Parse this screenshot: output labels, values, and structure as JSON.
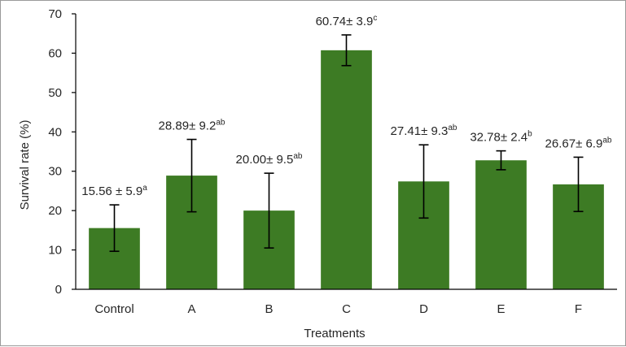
{
  "chart_data": {
    "type": "bar",
    "xlabel": "Treatments",
    "ylabel": "Survival rate (%)",
    "ylim": [
      0,
      70
    ],
    "yticks": [
      0,
      10,
      20,
      30,
      40,
      50,
      60,
      70
    ],
    "grid": false,
    "legend": "none",
    "categories": [
      "Control",
      "A",
      "B",
      "C",
      "D",
      "E",
      "F"
    ],
    "values": [
      15.56,
      28.89,
      20.0,
      60.74,
      27.41,
      32.78,
      26.67
    ],
    "errors": [
      5.9,
      9.2,
      9.5,
      3.9,
      9.3,
      2.4,
      6.9
    ],
    "labels": [
      {
        "main": "15.56 ± 5.9",
        "sup": "a"
      },
      {
        "main": "28.89± 9.2",
        "sup": "ab"
      },
      {
        "main": "20.00± 9.5",
        "sup": "ab"
      },
      {
        "main": "60.74± 3.9",
        "sup": "c"
      },
      {
        "main": "27.41± 9.3",
        "sup": "ab"
      },
      {
        "main": "32.78± 2.4",
        "sup": "b"
      },
      {
        "main": "26.67± 6.9",
        "sup": "ab"
      }
    ],
    "colors": {
      "bar": "#3d7b24",
      "error_bar": "#000000",
      "axis": "#000000"
    }
  }
}
